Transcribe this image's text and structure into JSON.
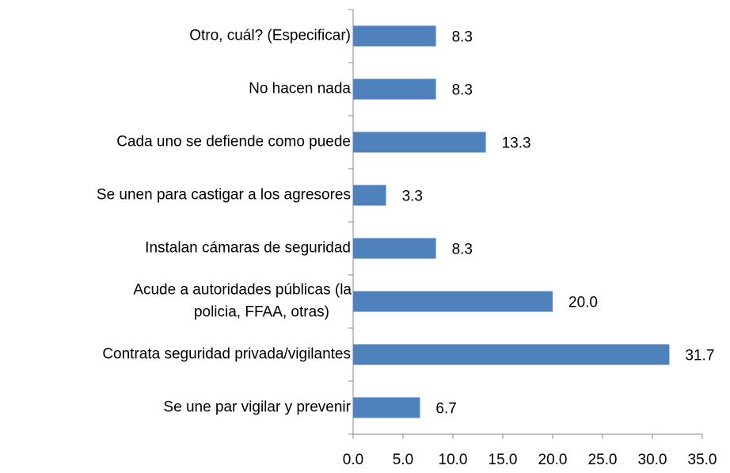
{
  "chart_data": {
    "type": "barh",
    "categories": [
      "Otro, cuál? (Especificar)",
      "No hacen nada",
      "Cada uno se defiende como puede",
      "Se unen para castigar a los agresores",
      "Instalan cámaras de seguridad",
      "Acude a autoridades públicas (la\npolicia, FFAA, otras)",
      "Contrata seguridad privada/vigilantes",
      "Se une par vigilar y prevenir"
    ],
    "values": [
      8.3,
      8.3,
      13.3,
      3.3,
      8.3,
      20,
      31.7,
      6.7
    ],
    "value_labels": [
      "8.3",
      "8.3",
      "13.3",
      "3.3",
      "8.3",
      "20.0",
      "31.7",
      "6.7"
    ],
    "color": "#4f81bd",
    "xlim": [
      0,
      35
    ],
    "xticks": [
      {
        "value": 0,
        "label": "0.0"
      },
      {
        "value": 5,
        "label": "5.0"
      },
      {
        "value": 10,
        "label": "10.0"
      },
      {
        "value": 15,
        "label": "15.0"
      },
      {
        "value": 20,
        "label": "20.0"
      },
      {
        "value": 25,
        "label": "25.0"
      },
      {
        "value": 30,
        "label": "30.0"
      },
      {
        "value": 35,
        "label": "35.0"
      }
    ],
    "grid": false
  }
}
